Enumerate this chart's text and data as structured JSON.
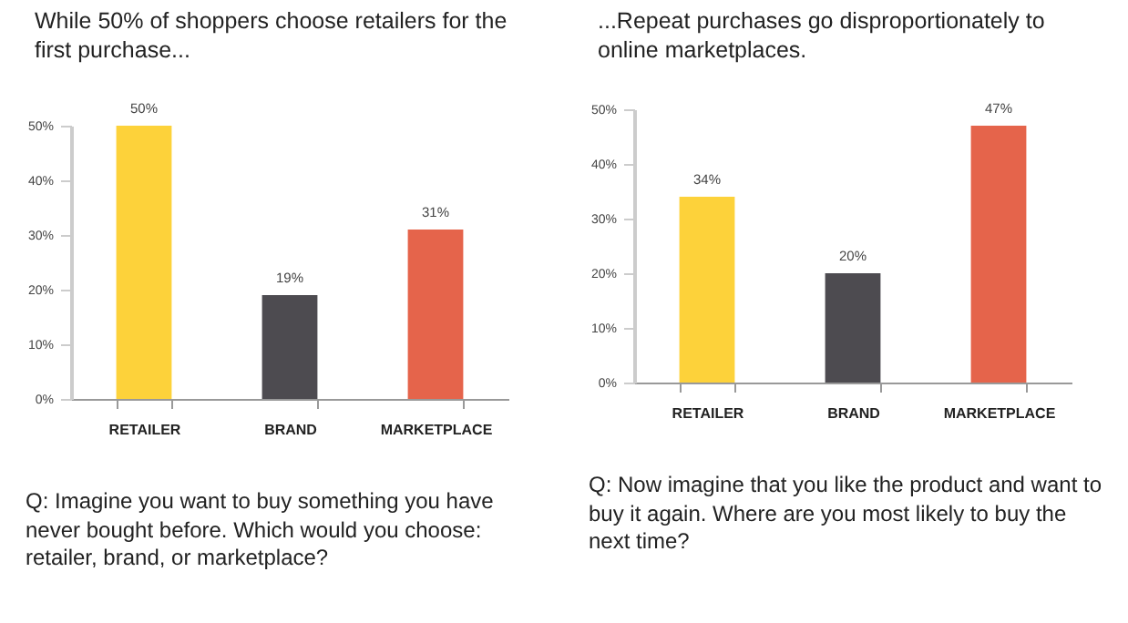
{
  "chart_data": [
    {
      "type": "bar",
      "title": "While 50% of shoppers choose retailers for the first purchase...",
      "categories": [
        "RETAILER",
        "BRAND",
        "MARKETPLACE"
      ],
      "values": [
        50,
        19,
        31
      ],
      "value_labels": [
        "50%",
        "19%",
        "31%"
      ],
      "colors": [
        "#fdd23a",
        "#4d4b50",
        "#e5644b"
      ],
      "ylim": [
        0,
        50
      ],
      "yticks": [
        {
          "value": 0,
          "label": "0%"
        },
        {
          "value": 10,
          "label": "10%"
        },
        {
          "value": 20,
          "label": "20%"
        },
        {
          "value": 30,
          "label": "30%"
        },
        {
          "value": 40,
          "label": "40%"
        },
        {
          "value": 50,
          "label": "50%"
        }
      ],
      "annotations": [
        "Q: Imagine you want to buy something you have never bought before. Which would you choose: retailer, brand, or marketplace?"
      ]
    },
    {
      "type": "bar",
      "title": "...Repeat purchases go disproportionately to online marketplaces.",
      "categories": [
        "RETAILER",
        "BRAND",
        "MARKETPLACE"
      ],
      "values": [
        34,
        20,
        47
      ],
      "value_labels": [
        "34%",
        "20%",
        "47%"
      ],
      "colors": [
        "#fdd23a",
        "#4d4b50",
        "#e5644b"
      ],
      "ylim": [
        0,
        50
      ],
      "yticks": [
        {
          "value": 0,
          "label": "0%"
        },
        {
          "value": 10,
          "label": "10%"
        },
        {
          "value": 20,
          "label": "20%"
        },
        {
          "value": 30,
          "label": "30%"
        },
        {
          "value": 40,
          "label": "40%"
        },
        {
          "value": 50,
          "label": "50%"
        }
      ],
      "annotations": [
        "Q: Now imagine that you like the product and want to buy it again. Where are you most likely to buy the next time?"
      ]
    }
  ]
}
